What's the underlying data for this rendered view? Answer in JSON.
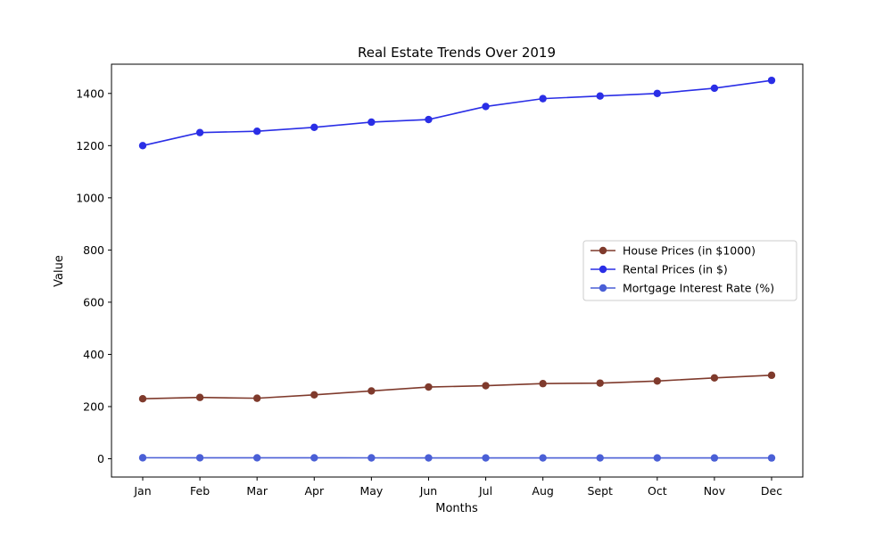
{
  "chart_data": {
    "type": "line",
    "title": "Real Estate Trends Over 2019",
    "xlabel": "Months",
    "ylabel": "Value",
    "categories": [
      "Jan",
      "Feb",
      "Mar",
      "Apr",
      "May",
      "Jun",
      "Jul",
      "Aug",
      "Sept",
      "Oct",
      "Nov",
      "Dec"
    ],
    "ylim": [
      -70,
      1512
    ],
    "yticks": [
      0,
      200,
      400,
      600,
      800,
      1000,
      1200,
      1400
    ],
    "grid": false,
    "legend_position": "center-right",
    "series": [
      {
        "name": "House Prices (in $1000)",
        "color": "#7f3a2c",
        "values": [
          230,
          235,
          232,
          245,
          260,
          275,
          280,
          288,
          290,
          298,
          310,
          320
        ]
      },
      {
        "name": "Rental Prices (in $)",
        "color": "#2a2ee6",
        "values": [
          1200,
          1250,
          1255,
          1270,
          1290,
          1300,
          1350,
          1380,
          1390,
          1400,
          1420,
          1450
        ]
      },
      {
        "name": "Mortgage Interest Rate (%)",
        "color": "#4a5fd6",
        "values": [
          3.9,
          3.8,
          3.7,
          3.6,
          3.5,
          3.4,
          3.3,
          3.3,
          3.2,
          3.2,
          3.1,
          3.1
        ]
      }
    ]
  }
}
